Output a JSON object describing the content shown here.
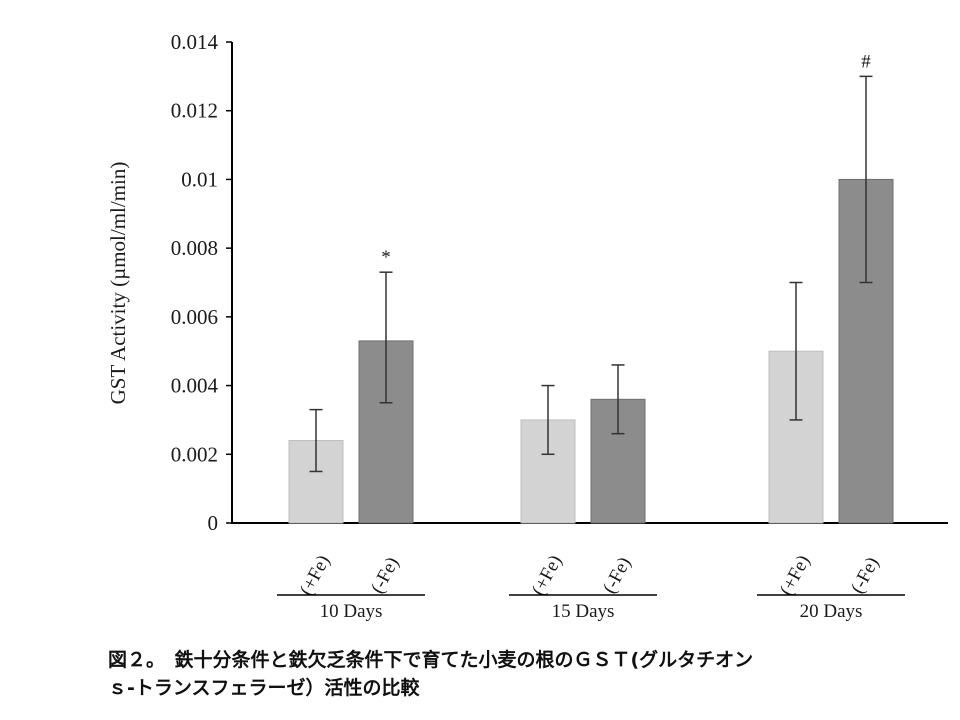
{
  "chart_data": {
    "type": "bar",
    "ylabel": "GST Activity (µmol/ml/min)",
    "ylim": [
      0,
      0.014
    ],
    "yticks": [
      "0",
      "0.002",
      "0.004",
      "0.006",
      "0.008",
      "0.01",
      "0.012",
      "0.014"
    ],
    "ytick_values": [
      0,
      0.002,
      0.004,
      0.006,
      0.008,
      0.01,
      0.012,
      0.014
    ],
    "groups": [
      {
        "label": "10 Days",
        "bars": [
          {
            "label": "(+Fe)",
            "value": 0.0024,
            "err_low": 0.0015,
            "err_high": 0.0033,
            "annotation": ""
          },
          {
            "label": "(-Fe)",
            "value": 0.0053,
            "err_low": 0.0035,
            "err_high": 0.0073,
            "annotation": "*"
          }
        ]
      },
      {
        "label": "15 Days",
        "bars": [
          {
            "label": "(+Fe)",
            "value": 0.003,
            "err_low": 0.002,
            "err_high": 0.004,
            "annotation": ""
          },
          {
            "label": "(-Fe)",
            "value": 0.0036,
            "err_low": 0.0026,
            "err_high": 0.0046,
            "annotation": ""
          }
        ]
      },
      {
        "label": "20 Days",
        "bars": [
          {
            "label": "(+Fe)",
            "value": 0.005,
            "err_low": 0.003,
            "err_high": 0.007,
            "annotation": ""
          },
          {
            "label": "(-Fe)",
            "value": 0.01,
            "err_low": 0.007,
            "err_high": 0.013,
            "annotation": "#"
          }
        ]
      }
    ],
    "colors": {
      "plus_fe": "#d3d3d3",
      "minus_fe": "#8c8c8c"
    },
    "grid": false,
    "legend": "none"
  },
  "caption": {
    "line1": "図２。　鉄十分条件と鉄欠乏条件下で育てた小麦の根のＧＳＴ(グルタチオン",
    "line2": "ｓ-トランスフェラーゼ）活性の比較"
  }
}
